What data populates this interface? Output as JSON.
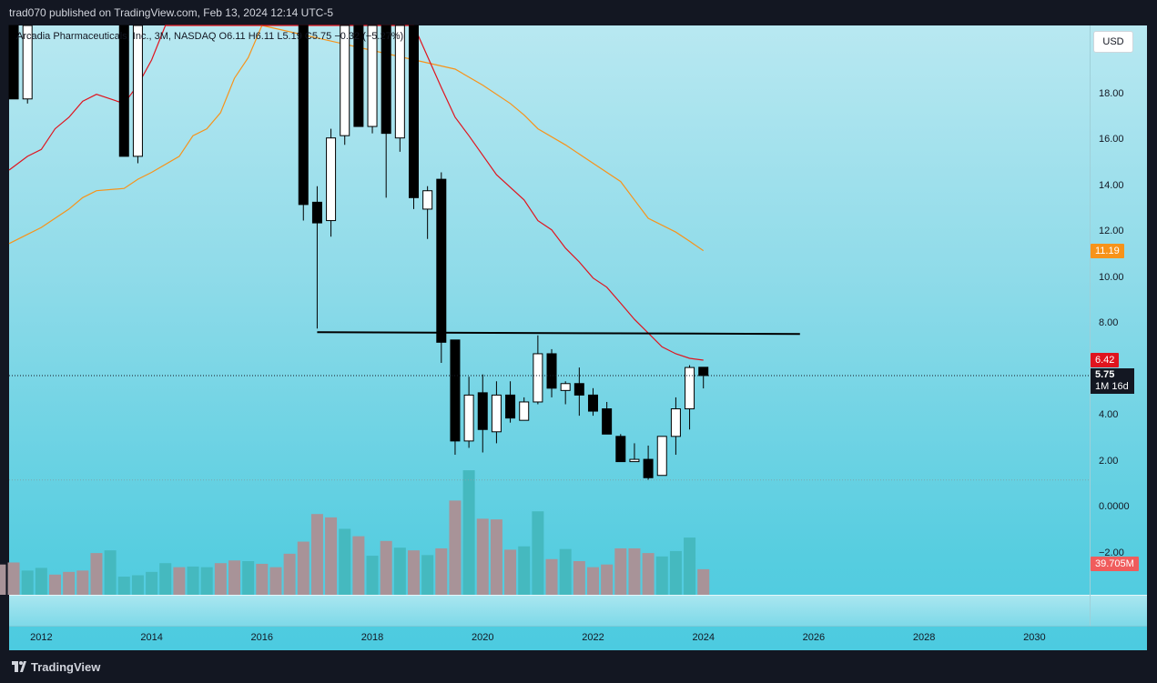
{
  "header": {
    "publish_line": "trad070 published on TradingView.com, Feb 13, 2024 12:14 UTC-5"
  },
  "symbol_line": "Arcadia Pharmaceuticals, Inc., 3M, NASDAQ  O6.11  H6.11  L5.19  C5.75  −0.32 (−5.27%)",
  "currency_button": "USD",
  "price_scale": {
    "ticks": [
      "18.00",
      "16.00",
      "14.00",
      "12.00",
      "10.00",
      "8.00",
      "6.00",
      "4.00",
      "2.00",
      "0.0000",
      "−2.00"
    ],
    "badges": {
      "ma_slow": {
        "value": "11.19",
        "color": "#f7931a"
      },
      "ma_fast": {
        "value": "6.42",
        "color": "#e0141e"
      },
      "last_price": "5.75",
      "countdown": "1M 16d",
      "volume": {
        "value": "39.705M",
        "color": "#f05c5c"
      }
    }
  },
  "time_axis": {
    "labels": [
      "2012",
      "2014",
      "2016",
      "2018",
      "2020",
      "2022",
      "2024",
      "2026",
      "2028",
      "2030"
    ]
  },
  "footer": {
    "brand": "TradingView"
  },
  "colors": {
    "up_body": "#ffffff",
    "down_body": "#000000",
    "ma_fast": "#e0141e",
    "ma_slow": "#f7931a",
    "vol_up": "#45b9bf",
    "vol_down": "#a89398"
  },
  "chart_data": {
    "type": "candlestick",
    "interval": "3M",
    "y_range": [
      -3.8,
      21
    ],
    "x_range": [
      "2011-06",
      "2031-01"
    ],
    "candles": [
      {
        "t": "2011-07",
        "o": 21.0,
        "h": 21.0,
        "l": 17.8,
        "c": 17.8
      },
      {
        "t": "2011-10",
        "o": 17.8,
        "h": 21.0,
        "l": 17.6,
        "c": 21.0
      },
      {
        "t": "2013-07",
        "o": 21.0,
        "h": 21.0,
        "l": 15.3,
        "c": 15.3
      },
      {
        "t": "2013-10",
        "o": 15.3,
        "h": 21.0,
        "l": 15.0,
        "c": 21.0
      },
      {
        "t": "2016-10",
        "o": 21.0,
        "h": 21.0,
        "l": 12.5,
        "c": 13.2
      },
      {
        "t": "2017-01",
        "o": 13.3,
        "h": 14.0,
        "l": 7.8,
        "c": 12.4
      },
      {
        "t": "2017-04",
        "o": 12.5,
        "h": 16.5,
        "l": 11.8,
        "c": 16.1
      },
      {
        "t": "2017-07",
        "o": 16.2,
        "h": 21.0,
        "l": 15.8,
        "c": 21.0
      },
      {
        "t": "2017-10",
        "o": 21.0,
        "h": 21.0,
        "l": 16.6,
        "c": 16.6
      },
      {
        "t": "2018-01",
        "o": 16.6,
        "h": 21.0,
        "l": 16.3,
        "c": 21.0
      },
      {
        "t": "2018-04",
        "o": 21.0,
        "h": 21.0,
        "l": 13.5,
        "c": 16.3
      },
      {
        "t": "2018-07",
        "o": 16.1,
        "h": 21.0,
        "l": 15.5,
        "c": 21.0
      },
      {
        "t": "2018-10",
        "o": 21.0,
        "h": 21.0,
        "l": 13.0,
        "c": 13.5
      },
      {
        "t": "2019-01",
        "o": 13.0,
        "h": 14.0,
        "l": 11.7,
        "c": 13.8
      },
      {
        "t": "2019-04",
        "o": 14.3,
        "h": 14.6,
        "l": 6.3,
        "c": 7.2
      },
      {
        "t": "2019-07",
        "o": 7.3,
        "h": 7.3,
        "l": 2.3,
        "c": 2.9
      },
      {
        "t": "2019-10",
        "o": 2.9,
        "h": 5.7,
        "l": 2.6,
        "c": 4.9
      },
      {
        "t": "2020-01",
        "o": 5.0,
        "h": 5.8,
        "l": 2.4,
        "c": 3.4
      },
      {
        "t": "2020-04",
        "o": 3.3,
        "h": 5.5,
        "l": 2.8,
        "c": 4.9
      },
      {
        "t": "2020-07",
        "o": 4.9,
        "h": 5.5,
        "l": 3.7,
        "c": 3.9
      },
      {
        "t": "2020-10",
        "o": 3.8,
        "h": 4.8,
        "l": 3.8,
        "c": 4.6
      },
      {
        "t": "2021-01",
        "o": 4.6,
        "h": 7.5,
        "l": 4.5,
        "c": 6.7
      },
      {
        "t": "2021-04",
        "o": 6.7,
        "h": 6.9,
        "l": 4.8,
        "c": 5.2
      },
      {
        "t": "2021-07",
        "o": 5.1,
        "h": 5.5,
        "l": 4.5,
        "c": 5.4
      },
      {
        "t": "2021-10",
        "o": 5.4,
        "h": 6.1,
        "l": 4.0,
        "c": 4.9
      },
      {
        "t": "2022-01",
        "o": 4.9,
        "h": 5.2,
        "l": 4.0,
        "c": 4.2
      },
      {
        "t": "2022-04",
        "o": 4.3,
        "h": 4.6,
        "l": 3.3,
        "c": 3.2
      },
      {
        "t": "2022-07",
        "o": 3.1,
        "h": 3.2,
        "l": 2.0,
        "c": 2.0
      },
      {
        "t": "2022-10",
        "o": 2.0,
        "h": 2.8,
        "l": 2.0,
        "c": 2.1
      },
      {
        "t": "2023-01",
        "o": 2.1,
        "h": 2.7,
        "l": 1.2,
        "c": 1.3
      },
      {
        "t": "2023-04",
        "o": 1.4,
        "h": 3.1,
        "l": 1.4,
        "c": 3.1
      },
      {
        "t": "2023-07",
        "o": 3.1,
        "h": 4.8,
        "l": 2.3,
        "c": 4.3
      },
      {
        "t": "2023-10",
        "o": 4.3,
        "h": 6.2,
        "l": 3.4,
        "c": 6.1
      },
      {
        "t": "2024-01",
        "o": 6.11,
        "h": 6.11,
        "l": 5.19,
        "c": 5.75
      }
    ],
    "ma_fast": {
      "name": "",
      "points": [
        [
          "2011-06",
          14.7
        ],
        [
          "2011-10",
          15.3
        ],
        [
          "2012-01",
          15.6
        ],
        [
          "2012-04",
          16.5
        ],
        [
          "2012-07",
          17.0
        ],
        [
          "2012-10",
          17.7
        ],
        [
          "2013-01",
          18.0
        ],
        [
          "2013-07",
          17.6
        ],
        [
          "2013-10",
          18.4
        ],
        [
          "2014-01",
          19.5
        ],
        [
          "2014-04",
          21.0
        ],
        [
          "2018-10",
          21.0
        ],
        [
          "2019-04",
          18.3
        ],
        [
          "2019-07",
          17.0
        ],
        [
          "2019-10",
          16.2
        ],
        [
          "2020-04",
          14.5
        ],
        [
          "2020-10",
          13.4
        ],
        [
          "2021-01",
          12.5
        ],
        [
          "2021-04",
          12.1
        ],
        [
          "2021-07",
          11.3
        ],
        [
          "2021-10",
          10.7
        ],
        [
          "2022-01",
          10.0
        ],
        [
          "2022-04",
          9.6
        ],
        [
          "2022-07",
          8.9
        ],
        [
          "2022-10",
          8.2
        ],
        [
          "2023-01",
          7.6
        ],
        [
          "2023-04",
          7.0
        ],
        [
          "2023-07",
          6.7
        ],
        [
          "2023-10",
          6.5
        ],
        [
          "2024-01",
          6.42
        ]
      ]
    },
    "ma_slow": {
      "name": "",
      "points": [
        [
          "2011-06",
          11.5
        ],
        [
          "2011-10",
          11.9
        ],
        [
          "2012-01",
          12.2
        ],
        [
          "2012-04",
          12.6
        ],
        [
          "2012-07",
          13.0
        ],
        [
          "2012-10",
          13.5
        ],
        [
          "2013-01",
          13.8
        ],
        [
          "2013-07",
          13.9
        ],
        [
          "2013-10",
          14.3
        ],
        [
          "2014-01",
          14.6
        ],
        [
          "2014-07",
          15.3
        ],
        [
          "2014-10",
          16.2
        ],
        [
          "2015-01",
          16.5
        ],
        [
          "2015-04",
          17.2
        ],
        [
          "2015-07",
          18.7
        ],
        [
          "2015-10",
          19.6
        ],
        [
          "2016-01",
          21.0
        ],
        [
          "2019-07",
          19.1
        ],
        [
          "2020-01",
          18.4
        ],
        [
          "2020-07",
          17.6
        ],
        [
          "2020-10",
          17.1
        ],
        [
          "2021-01",
          16.5
        ],
        [
          "2021-07",
          15.8
        ],
        [
          "2022-01",
          15.0
        ],
        [
          "2022-07",
          14.2
        ],
        [
          "2022-10",
          13.4
        ],
        [
          "2023-01",
          12.6
        ],
        [
          "2023-07",
          12.0
        ],
        [
          "2023-10",
          11.6
        ],
        [
          "2024-01",
          11.19
        ]
      ]
    },
    "horizontal_line": {
      "value": 7.6,
      "from": "2017-01",
      "to": "2025-10"
    },
    "last_price_line": 5.75,
    "volume_baseline_line": 1.2,
    "volume": {
      "unit": "relative",
      "bars": [
        {
          "t": "2011-04",
          "v": 0.45,
          "up": false
        },
        {
          "t": "2011-07",
          "v": 0.48,
          "up": false
        },
        {
          "t": "2011-10",
          "v": 0.36,
          "up": true
        },
        {
          "t": "2012-01",
          "v": 0.4,
          "up": true
        },
        {
          "t": "2012-04",
          "v": 0.3,
          "up": false
        },
        {
          "t": "2012-07",
          "v": 0.34,
          "up": false
        },
        {
          "t": "2012-10",
          "v": 0.36,
          "up": false
        },
        {
          "t": "2013-01",
          "v": 0.62,
          "up": false
        },
        {
          "t": "2013-04",
          "v": 0.66,
          "up": true
        },
        {
          "t": "2013-07",
          "v": 0.27,
          "up": true
        },
        {
          "t": "2013-10",
          "v": 0.29,
          "up": true
        },
        {
          "t": "2014-01",
          "v": 0.34,
          "up": true
        },
        {
          "t": "2014-04",
          "v": 0.47,
          "up": true
        },
        {
          "t": "2014-07",
          "v": 0.41,
          "up": false
        },
        {
          "t": "2014-10",
          "v": 0.42,
          "up": true
        },
        {
          "t": "2015-01",
          "v": 0.41,
          "up": true
        },
        {
          "t": "2015-04",
          "v": 0.47,
          "up": false
        },
        {
          "t": "2015-07",
          "v": 0.51,
          "up": false
        },
        {
          "t": "2015-10",
          "v": 0.5,
          "up": true
        },
        {
          "t": "2016-01",
          "v": 0.46,
          "up": false
        },
        {
          "t": "2016-04",
          "v": 0.41,
          "up": false
        },
        {
          "t": "2016-07",
          "v": 0.61,
          "up": false
        },
        {
          "t": "2016-10",
          "v": 0.79,
          "up": false
        },
        {
          "t": "2017-01",
          "v": 1.2,
          "up": false
        },
        {
          "t": "2017-04",
          "v": 1.15,
          "up": false
        },
        {
          "t": "2017-07",
          "v": 0.98,
          "up": true
        },
        {
          "t": "2017-10",
          "v": 0.87,
          "up": false
        },
        {
          "t": "2018-01",
          "v": 0.58,
          "up": true
        },
        {
          "t": "2018-04",
          "v": 0.8,
          "up": false
        },
        {
          "t": "2018-07",
          "v": 0.7,
          "up": true
        },
        {
          "t": "2018-10",
          "v": 0.66,
          "up": false
        },
        {
          "t": "2019-01",
          "v": 0.59,
          "up": true
        },
        {
          "t": "2019-04",
          "v": 0.69,
          "up": false
        },
        {
          "t": "2019-07",
          "v": 1.4,
          "up": false
        },
        {
          "t": "2019-10",
          "v": 1.85,
          "up": true
        },
        {
          "t": "2020-01",
          "v": 1.13,
          "up": false
        },
        {
          "t": "2020-04",
          "v": 1.12,
          "up": false
        },
        {
          "t": "2020-07",
          "v": 0.67,
          "up": false
        },
        {
          "t": "2020-10",
          "v": 0.72,
          "up": true
        },
        {
          "t": "2021-01",
          "v": 1.24,
          "up": true
        },
        {
          "t": "2021-04",
          "v": 0.53,
          "up": false
        },
        {
          "t": "2021-07",
          "v": 0.68,
          "up": true
        },
        {
          "t": "2021-10",
          "v": 0.5,
          "up": false
        },
        {
          "t": "2022-01",
          "v": 0.41,
          "up": false
        },
        {
          "t": "2022-04",
          "v": 0.45,
          "up": false
        },
        {
          "t": "2022-07",
          "v": 0.69,
          "up": false
        },
        {
          "t": "2022-10",
          "v": 0.69,
          "up": false
        },
        {
          "t": "2023-01",
          "v": 0.62,
          "up": false
        },
        {
          "t": "2023-04",
          "v": 0.57,
          "up": true
        },
        {
          "t": "2023-07",
          "v": 0.65,
          "up": true
        },
        {
          "t": "2023-10",
          "v": 0.85,
          "up": true
        },
        {
          "t": "2024-01",
          "v": 0.38,
          "up": false
        }
      ]
    }
  }
}
